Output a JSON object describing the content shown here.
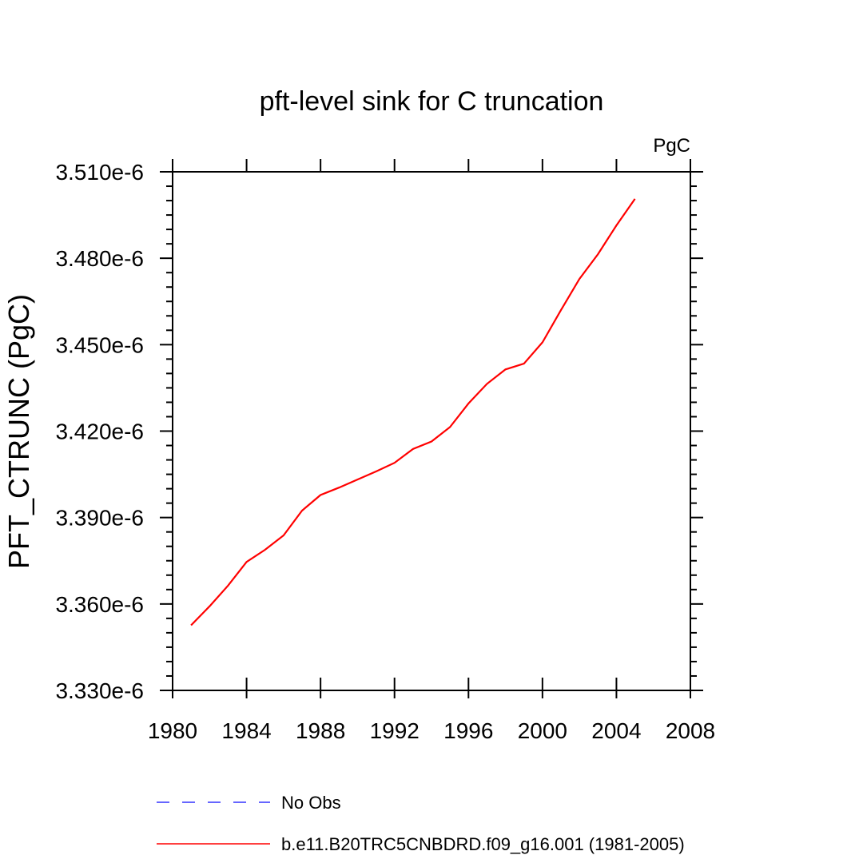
{
  "chart_data": {
    "type": "line",
    "title": "pft-level sink for C truncation",
    "units_label": "PgC",
    "xlabel": "",
    "ylabel": "PFT_CTRUNC  (PgC)",
    "xlim": [
      1980,
      2008
    ],
    "ylim": [
      3.33e-06,
      3.51e-06
    ],
    "x_ticks": [
      1980,
      1984,
      1988,
      1992,
      1996,
      2000,
      2004,
      2008
    ],
    "x_tick_labels": [
      "1980",
      "1984",
      "1988",
      "1992",
      "1996",
      "2000",
      "2004",
      "2008"
    ],
    "y_ticks": [
      3.33e-06,
      3.36e-06,
      3.39e-06,
      3.42e-06,
      3.45e-06,
      3.48e-06,
      3.51e-06
    ],
    "y_tick_labels": [
      "3.330e-6",
      "3.360e-6",
      "3.390e-6",
      "3.420e-6",
      "3.450e-6",
      "3.480e-6",
      "3.510e-6"
    ],
    "grid": false,
    "legend_position": "bottom",
    "series": [
      {
        "name": "No Obs",
        "color": "#3333ff",
        "dash": "dashed",
        "x": [],
        "values": []
      },
      {
        "name": "b.e11.B20TRC5CNBDRD.f09_g16.001 (1981-2005)",
        "color": "#ff0000",
        "dash": "solid",
        "x": [
          1981,
          1982,
          1983,
          1984,
          1985,
          1986,
          1987,
          1988,
          1989,
          1990,
          1991,
          1992,
          1993,
          1994,
          1995,
          1996,
          1997,
          1998,
          1999,
          2000,
          2001,
          2002,
          2003,
          2004,
          2005
        ],
        "values": [
          3.3526e-06,
          3.3592e-06,
          3.3664e-06,
          3.3746e-06,
          3.3788e-06,
          3.3838e-06,
          3.3924e-06,
          3.3978e-06,
          3.4004e-06,
          3.4032e-06,
          3.406e-06,
          3.409e-06,
          3.4138e-06,
          3.4164e-06,
          3.4214e-06,
          3.4296e-06,
          3.4364e-06,
          3.4414e-06,
          3.4434e-06,
          3.4508e-06,
          3.462e-06,
          3.4728e-06,
          3.4814e-06,
          3.4914e-06,
          3.5006e-06
        ]
      }
    ]
  }
}
